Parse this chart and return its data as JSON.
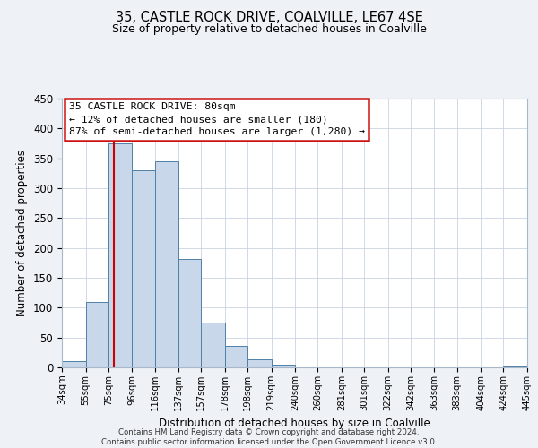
{
  "title": "35, CASTLE ROCK DRIVE, COALVILLE, LE67 4SE",
  "subtitle": "Size of property relative to detached houses in Coalville",
  "xlabel": "Distribution of detached houses by size in Coalville",
  "ylabel": "Number of detached properties",
  "bin_edges": [
    34,
    55,
    75,
    96,
    116,
    137,
    157,
    178,
    198,
    219,
    240,
    260,
    281,
    301,
    322,
    342,
    363,
    383,
    404,
    424,
    445
  ],
  "bar_heights": [
    10,
    110,
    375,
    330,
    345,
    182,
    75,
    36,
    13,
    5,
    0,
    0,
    0,
    0,
    0,
    0,
    0,
    0,
    0,
    1
  ],
  "bar_color": "#c8d8ea",
  "bar_edge_color": "#5080a8",
  "ref_line_x": 80,
  "ref_line_color": "#cc0000",
  "ylim": [
    0,
    450
  ],
  "yticks": [
    0,
    50,
    100,
    150,
    200,
    250,
    300,
    350,
    400,
    450
  ],
  "tick_labels": [
    "34sqm",
    "55sqm",
    "75sqm",
    "96sqm",
    "116sqm",
    "137sqm",
    "157sqm",
    "178sqm",
    "198sqm",
    "219sqm",
    "240sqm",
    "260sqm",
    "281sqm",
    "301sqm",
    "322sqm",
    "342sqm",
    "363sqm",
    "383sqm",
    "404sqm",
    "424sqm",
    "445sqm"
  ],
  "annotation_title": "35 CASTLE ROCK DRIVE: 80sqm",
  "annotation_line1": "← 12% of detached houses are smaller (180)",
  "annotation_line2": "87% of semi-detached houses are larger (1,280) →",
  "footer_line1": "Contains HM Land Registry data © Crown copyright and database right 2024.",
  "footer_line2": "Contains public sector information licensed under the Open Government Licence v3.0.",
  "bg_color": "#eef2f6",
  "plot_bg_color": "#ffffff",
  "grid_color": "#c8d4e0"
}
